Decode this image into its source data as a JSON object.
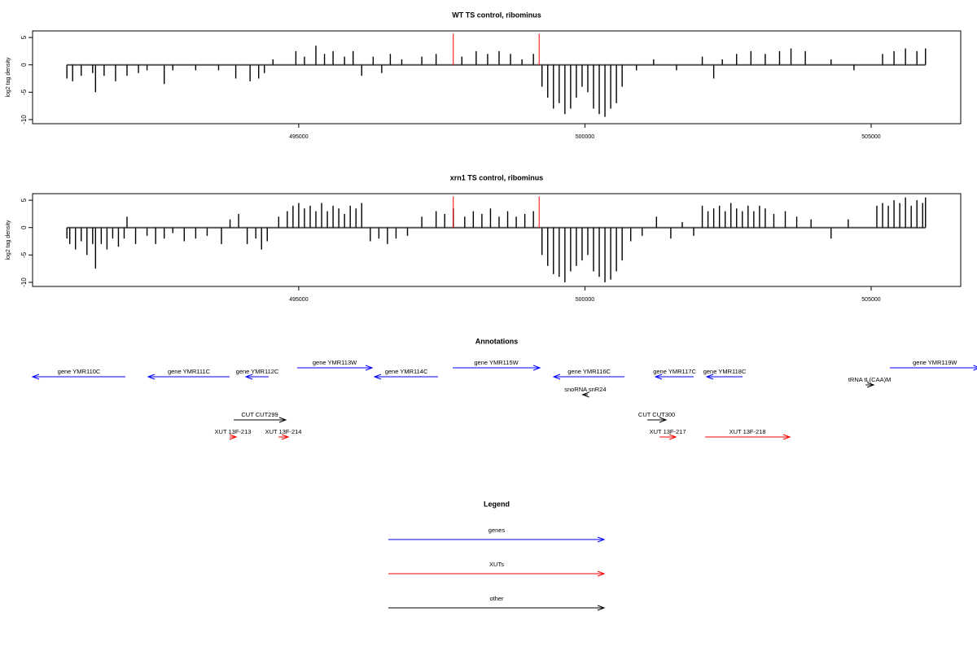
{
  "chart_data": [
    {
      "type": "bar",
      "title": "WT TS control, ribominus",
      "y_label": "log2 tag density",
      "xlim": [
        490350,
        506565
      ],
      "ylim": [
        -10.75,
        6.2
      ],
      "xticks": [
        495000,
        500000,
        505000
      ],
      "yticks": [
        5,
        0,
        -5,
        -10
      ],
      "series": [
        {
          "color": "#000000",
          "x": [
            490950,
            491050,
            491200,
            491400,
            491450,
            491600,
            491800,
            492000,
            492200,
            492350,
            492650,
            492800,
            493200,
            493600,
            493900,
            494150,
            494300,
            494400,
            494550,
            494950,
            495100,
            495300,
            495450,
            495600,
            495800,
            495950,
            496100,
            496300,
            496450,
            496600,
            496800,
            497150,
            497400,
            497850,
            498100,
            498300,
            498500,
            498700,
            498900,
            499100,
            499250,
            499350,
            499450,
            499550,
            499650,
            499750,
            499850,
            499950,
            500050,
            500150,
            500250,
            500350,
            500450,
            500550,
            500650,
            500900,
            501200,
            501600,
            502050,
            502250,
            502400,
            502650,
            502900,
            503150,
            503400,
            503600,
            503850,
            504300,
            504700,
            505200,
            505400,
            505600,
            505800,
            505950
          ],
          "values": [
            -2.5,
            -3,
            -2,
            -1.5,
            -5,
            -2,
            -3,
            -2,
            -1.5,
            -1,
            -3.5,
            -1,
            -1,
            -1,
            -2.5,
            -3,
            -2.5,
            -1.5,
            1,
            2.5,
            1.5,
            3.5,
            2,
            2.5,
            1.5,
            2.5,
            -2,
            1.5,
            -1.5,
            2,
            1,
            1.5,
            2,
            1.5,
            2.5,
            2,
            2.5,
            2,
            1,
            2,
            -4,
            -6,
            -8,
            -7,
            -9,
            -8,
            -6,
            -4,
            -5,
            -8,
            -9,
            -9.5,
            -8,
            -7,
            -4,
            -1,
            1,
            -1,
            1.5,
            -2.5,
            1,
            2,
            2.5,
            2,
            2.5,
            3,
            2.5,
            1,
            -1,
            2,
            2.5,
            3,
            2.5,
            3
          ]
        },
        {
          "color": "#ff0000",
          "x": [
            497700,
            499200
          ],
          "values": [
            5.7,
            5.7
          ]
        }
      ]
    },
    {
      "type": "bar",
      "title": "xrn1 TS control, ribominus",
      "y_label": "log2 tag density",
      "xlim": [
        490350,
        506565
      ],
      "ylim": [
        -10.75,
        6.2
      ],
      "xticks": [
        495000,
        500000,
        505000
      ],
      "yticks": [
        5,
        0,
        -5,
        -10
      ],
      "series": [
        {
          "color": "#000000",
          "x": [
            490950,
            491000,
            491100,
            491200,
            491300,
            491400,
            491450,
            491550,
            491650,
            491750,
            491850,
            491950,
            492000,
            492150,
            492350,
            492500,
            492650,
            492800,
            493000,
            493200,
            493400,
            493650,
            493800,
            493950,
            494100,
            494250,
            494350,
            494450,
            494650,
            494800,
            494900,
            495000,
            495100,
            495200,
            495300,
            495400,
            495500,
            495600,
            495700,
            495800,
            495900,
            496000,
            496100,
            496250,
            496400,
            496550,
            496700,
            496900,
            497150,
            497400,
            497550,
            497700,
            497900,
            498050,
            498200,
            498350,
            498500,
            498650,
            498800,
            498950,
            499100,
            499250,
            499350,
            499450,
            499550,
            499650,
            499750,
            499850,
            499950,
            500050,
            500150,
            500250,
            500350,
            500450,
            500550,
            500650,
            500800,
            501000,
            501250,
            501500,
            501700,
            501900,
            502050,
            502150,
            502250,
            502350,
            502450,
            502550,
            502650,
            502750,
            502850,
            502950,
            503050,
            503150,
            503300,
            503500,
            503700,
            503950,
            504300,
            504600,
            505100,
            505200,
            505300,
            505400,
            505500,
            505600,
            505700,
            505800,
            505900,
            505950
          ],
          "values": [
            -2,
            -3,
            -4,
            -2.5,
            -5,
            -3,
            -7.5,
            -3,
            -4,
            -2,
            -3.5,
            -2,
            2,
            -3,
            -1.5,
            -3,
            -2,
            -1,
            -2.5,
            -2,
            -1.5,
            -3,
            1.5,
            2.5,
            -3,
            -2,
            -4,
            -2.5,
            2,
            3,
            4,
            4.5,
            3.5,
            4,
            3,
            4.5,
            3,
            4,
            3.5,
            2.5,
            4,
            3.5,
            4.5,
            -2.5,
            -2,
            -3,
            -2,
            -1.5,
            2,
            3,
            2.5,
            3.5,
            2,
            3,
            2.5,
            3.5,
            2,
            3,
            2,
            2.5,
            3,
            -5,
            -7,
            -8.5,
            -9,
            -10,
            -8,
            -7,
            -6,
            -5,
            -8,
            -9,
            -10,
            -9.5,
            -8,
            -6,
            -2.5,
            -1.5,
            2,
            -2,
            1,
            -1.5,
            4,
            3,
            3.5,
            4,
            3,
            4.5,
            3.5,
            3,
            4,
            3,
            4,
            3.5,
            2.5,
            3,
            2,
            1.5,
            -2,
            1.5,
            4,
            4.5,
            4,
            5,
            4.5,
            5.5,
            4,
            5,
            4.5,
            5.5
          ]
        },
        {
          "color": "#ff0000",
          "x": [
            497700,
            499200
          ],
          "values": [
            5.7,
            5.7
          ]
        }
      ]
    }
  ],
  "annotations": {
    "title": "Annotations",
    "items": [
      {
        "label": "gene YMR110C",
        "start": 490350,
        "end": 491972,
        "direction": "left",
        "color": "#0000ff"
      },
      {
        "label": "gene YMR111C",
        "start": 492370,
        "end": 493792,
        "direction": "left",
        "color": "#0000ff"
      },
      {
        "label": "gene YMR112C",
        "start": 494077,
        "end": 494475,
        "direction": "left",
        "color": "#0000ff"
      },
      {
        "label": "gene YMR113W",
        "start": 494973,
        "end": 496282,
        "direction": "right",
        "color": "#0000ff"
      },
      {
        "label": "gene YMR114C",
        "start": 496325,
        "end": 497434,
        "direction": "left",
        "color": "#0000ff"
      },
      {
        "label": "gene YMR115W",
        "start": 497690,
        "end": 499212,
        "direction": "right",
        "color": "#0000ff"
      },
      {
        "label": "gene YMR116C",
        "start": 499454,
        "end": 500692,
        "direction": "left",
        "color": "#0000ff"
      },
      {
        "label": "snoRNA snR24",
        "start": 499960,
        "end": 500052,
        "direction": "left",
        "color": "#000000"
      },
      {
        "label": "gene YMR117C",
        "start": 501232,
        "end": 501900,
        "direction": "left",
        "color": "#0000ff"
      },
      {
        "label": "gene YMR118C",
        "start": 502128,
        "end": 502754,
        "direction": "left",
        "color": "#0000ff"
      },
      {
        "label": "tRNA tL(CAA)M",
        "start": 504902,
        "end": 505044,
        "direction": "right",
        "color": "#000000"
      },
      {
        "label": "gene YMR119W",
        "start": 505328,
        "end": 506900,
        "direction": "right",
        "color": "#0000ff"
      },
      {
        "label": "CUT CUT299",
        "start": 493864,
        "end": 494774,
        "direction": "right",
        "color": "#000000"
      },
      {
        "label": "CUT CUT300",
        "start": 501090,
        "end": 501417,
        "direction": "right",
        "color": "#000000"
      },
      {
        "label": "XUT 13F-213",
        "start": 493792,
        "end": 493906,
        "direction": "right",
        "color": "#ff0000"
      },
      {
        "label": "XUT 13F-214",
        "start": 494646,
        "end": 494817,
        "direction": "right",
        "color": "#ff0000"
      },
      {
        "label": "XUT 13F-217",
        "start": 501303,
        "end": 501588,
        "direction": "right",
        "color": "#ff0000"
      },
      {
        "label": "XUT 13F-218",
        "start": 502100,
        "end": 503579,
        "direction": "right",
        "color": "#ff0000"
      }
    ]
  },
  "legend": {
    "title": "Legend",
    "items": [
      {
        "label": "genes",
        "color": "#0000ff"
      },
      {
        "label": "XUTs",
        "color": "#ff0000"
      },
      {
        "label": "other",
        "color": "#000000"
      }
    ]
  }
}
